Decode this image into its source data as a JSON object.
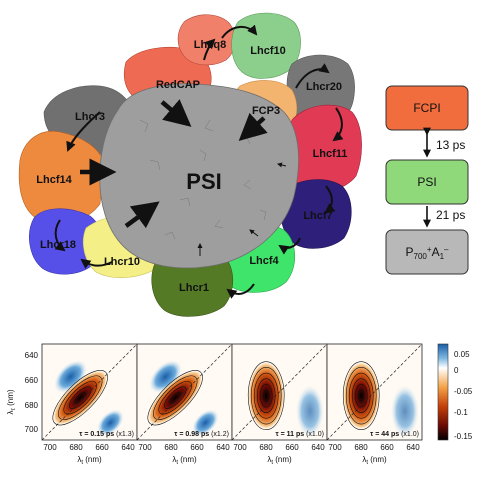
{
  "complex": {
    "center_label": "PSI",
    "antennas": [
      {
        "id": "lhcq8",
        "label": "Lhcq8",
        "color": "#f0806a"
      },
      {
        "id": "lhcf10",
        "label": "Lhcf10",
        "color": "#8cce8c"
      },
      {
        "id": "lhcr20",
        "label": "Lhcr20",
        "color": "#777777"
      },
      {
        "id": "redcap",
        "label": "RedCAP",
        "color": "#ef6a52"
      },
      {
        "id": "fcp3",
        "label": "FCP3",
        "color": "#f3b470"
      },
      {
        "id": "lhcr3",
        "label": "Lhcr3",
        "color": "#707070"
      },
      {
        "id": "lhcf11",
        "label": "Lhcf11",
        "color": "#e03a55"
      },
      {
        "id": "lhcf14",
        "label": "Lhcf14",
        "color": "#ee8a3e"
      },
      {
        "id": "lhcf7",
        "label": "Lhcf7",
        "color": "#2e1f7a"
      },
      {
        "id": "lhcr18",
        "label": "Lhcr18",
        "color": "#5750e8"
      },
      {
        "id": "lhcr10",
        "label": "Lhcr10",
        "color": "#f4ef86"
      },
      {
        "id": "lhcf4",
        "label": "Lhcf4",
        "color": "#3fe56a"
      },
      {
        "id": "lhcr1",
        "label": "Lhcr1",
        "color": "#557a25"
      }
    ]
  },
  "scheme": {
    "boxes": [
      {
        "label": "FCPI",
        "color": "#f26d3d"
      },
      {
        "label": "PSI",
        "color": "#8fd97a"
      },
      {
        "label_main": "P",
        "sub1": "700",
        "sup1": "+",
        "label_mid": "A",
        "sub2": "1",
        "sup2": "–",
        "color": "#b8b8b8"
      }
    ],
    "times": [
      "13 ps",
      "21 ps"
    ]
  },
  "spectra": {
    "y_label": "λ",
    "y_sub": "τ",
    "y_unit": " (nm)",
    "x_label": "λ",
    "x_sub": "t",
    "x_unit": " (nm)",
    "x_ticks": [
      "700",
      "680",
      "660",
      "640"
    ],
    "y_ticks": [
      "640",
      "660",
      "680",
      "700"
    ],
    "panels": [
      {
        "tau_sym": "τ = ",
        "tau_val": "0.15 ps",
        "scale": " (x1.3)"
      },
      {
        "tau_sym": "τ = ",
        "tau_val": "0.98 ps",
        "scale": " (x1.2)"
      },
      {
        "tau_sym": "τ = ",
        "tau_val": "11 ps",
        "scale": " (x1.0)"
      },
      {
        "tau_sym": "τ = ",
        "tau_val": "44 ps",
        "scale": " (x1.0)"
      }
    ],
    "colorbar_ticks": [
      "0.05",
      "0",
      "-0.05",
      "-0.1",
      "-0.15"
    ]
  }
}
